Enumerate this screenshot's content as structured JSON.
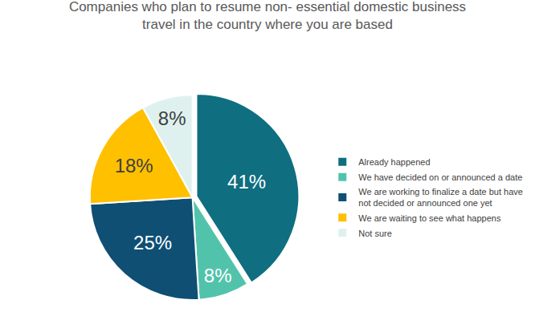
{
  "chart_data": {
    "type": "pie",
    "title": "Companies who plan to resume non- essential domestic business travel in the country where you are based",
    "categories": [
      "Already happened",
      "We have decided on or announced a date",
      "We are working to finalize a date but have not decided or announced one yet",
      "We are waiting to see what happens",
      "Not sure"
    ],
    "values": [
      41,
      8,
      25,
      18,
      8
    ],
    "value_labels": [
      "41%",
      "8%",
      "25%",
      "18%",
      "8%"
    ],
    "colors": [
      "#0f6e80",
      "#52c3ab",
      "#0e4f73",
      "#ffc000",
      "#dff1ef"
    ],
    "data_labels": true,
    "legend": "right"
  }
}
